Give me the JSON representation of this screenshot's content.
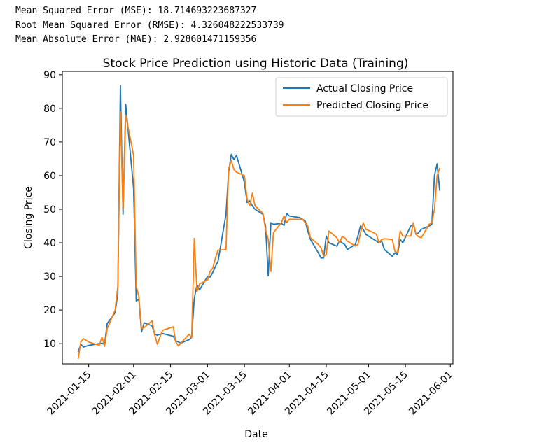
{
  "metrics": {
    "mse": "Mean Squared Error (MSE): 18.714693223687327",
    "rmse": "Root Mean Squared Error (RMSE): 4.326048222533739",
    "mae": "Mean Absolute Error (MAE): 2.928601471159356"
  },
  "chart_data": {
    "type": "line",
    "title": "Stock Price Prediction using Historic Data (Training)",
    "xlabel": "Date",
    "ylabel": "Closing Price",
    "xlim": [
      "2021-01-05",
      "2021-06-02"
    ],
    "ylim": [
      4,
      91
    ],
    "x_ticks": [
      "2021-01-15",
      "2021-02-01",
      "2021-02-15",
      "2021-03-01",
      "2021-03-15",
      "2021-04-01",
      "2021-04-15",
      "2021-05-01",
      "2021-05-15",
      "2021-06-01"
    ],
    "y_ticks": [
      10,
      20,
      30,
      40,
      50,
      60,
      70,
      80,
      90
    ],
    "grid": false,
    "legend_position": "upper right",
    "series": [
      {
        "name": "Actual Closing Price",
        "color": "#1f77b4",
        "points": [
          [
            "2021-01-11",
            7.5
          ],
          [
            "2021-01-12",
            9.8
          ],
          [
            "2021-01-13",
            9.0
          ],
          [
            "2021-01-15",
            9.5
          ],
          [
            "2021-01-19",
            10.0
          ],
          [
            "2021-01-20",
            10.1
          ],
          [
            "2021-01-21",
            9.8
          ],
          [
            "2021-01-22",
            16.0
          ],
          [
            "2021-01-25",
            19.2
          ],
          [
            "2021-01-26",
            25.0
          ],
          [
            "2021-01-27",
            86.8
          ],
          [
            "2021-01-28",
            48.5
          ],
          [
            "2021-01-29",
            81.2
          ],
          [
            "2021-02-01",
            56.2
          ],
          [
            "2021-02-02",
            22.7
          ],
          [
            "2021-02-03",
            23.2
          ],
          [
            "2021-02-04",
            13.5
          ],
          [
            "2021-02-05",
            16.2
          ],
          [
            "2021-02-08",
            15.3
          ],
          [
            "2021-02-09",
            12.8
          ],
          [
            "2021-02-10",
            12.5
          ],
          [
            "2021-02-11",
            12.8
          ],
          [
            "2021-02-12",
            13.0
          ],
          [
            "2021-02-16",
            12.2
          ],
          [
            "2021-02-17",
            10.8
          ],
          [
            "2021-02-18",
            10.5
          ],
          [
            "2021-02-19",
            10.2
          ],
          [
            "2021-02-22",
            11.2
          ],
          [
            "2021-02-23",
            11.8
          ],
          [
            "2021-02-24",
            23.5
          ],
          [
            "2021-02-25",
            27.5
          ],
          [
            "2021-02-26",
            26.0
          ],
          [
            "2021-03-01",
            30.0
          ],
          [
            "2021-03-02",
            29.8
          ],
          [
            "2021-03-03",
            31.2
          ],
          [
            "2021-03-04",
            33.0
          ],
          [
            "2021-03-05",
            34.5
          ],
          [
            "2021-03-08",
            48.5
          ],
          [
            "2021-03-09",
            61.0
          ],
          [
            "2021-03-10",
            66.3
          ],
          [
            "2021-03-11",
            64.8
          ],
          [
            "2021-03-12",
            66.0
          ],
          [
            "2021-03-15",
            58.0
          ],
          [
            "2021-03-16",
            52.0
          ],
          [
            "2021-03-17",
            52.5
          ],
          [
            "2021-03-18",
            51.0
          ],
          [
            "2021-03-19",
            50.0
          ],
          [
            "2021-03-22",
            48.5
          ],
          [
            "2021-03-23",
            45.0
          ],
          [
            "2021-03-24",
            30.2
          ],
          [
            "2021-03-25",
            46.0
          ],
          [
            "2021-03-26",
            45.5
          ],
          [
            "2021-03-29",
            45.8
          ],
          [
            "2021-03-30",
            45.2
          ],
          [
            "2021-03-31",
            48.8
          ],
          [
            "2021-04-01",
            48.0
          ],
          [
            "2021-04-05",
            47.5
          ],
          [
            "2021-04-06",
            47.0
          ],
          [
            "2021-04-07",
            46.5
          ],
          [
            "2021-04-08",
            43.5
          ],
          [
            "2021-04-09",
            41.0
          ],
          [
            "2021-04-12",
            37.0
          ],
          [
            "2021-04-13",
            35.5
          ],
          [
            "2021-04-14",
            35.5
          ],
          [
            "2021-04-15",
            42.0
          ],
          [
            "2021-04-16",
            40.0
          ],
          [
            "2021-04-19",
            39.0
          ],
          [
            "2021-04-20",
            40.5
          ],
          [
            "2021-04-21",
            40.0
          ],
          [
            "2021-04-22",
            39.5
          ],
          [
            "2021-04-23",
            38.0
          ],
          [
            "2021-04-26",
            39.5
          ],
          [
            "2021-04-27",
            42.0
          ],
          [
            "2021-04-28",
            45.0
          ],
          [
            "2021-04-29",
            44.0
          ],
          [
            "2021-04-30",
            42.5
          ],
          [
            "2021-05-03",
            41.0
          ],
          [
            "2021-05-04",
            40.5
          ],
          [
            "2021-05-05",
            40.0
          ],
          [
            "2021-05-06",
            40.5
          ],
          [
            "2021-05-07",
            38.0
          ],
          [
            "2021-05-10",
            36.0
          ],
          [
            "2021-05-11",
            37.0
          ],
          [
            "2021-05-12",
            36.5
          ],
          [
            "2021-05-13",
            41.0
          ],
          [
            "2021-05-14",
            40.0
          ],
          [
            "2021-05-17",
            45.0
          ],
          [
            "2021-05-18",
            45.5
          ],
          [
            "2021-05-19",
            42.5
          ],
          [
            "2021-05-20",
            43.0
          ],
          [
            "2021-05-21",
            44.0
          ],
          [
            "2021-05-24",
            45.0
          ],
          [
            "2021-05-25",
            45.5
          ],
          [
            "2021-05-26",
            60.0
          ],
          [
            "2021-05-27",
            63.5
          ],
          [
            "2021-05-28",
            55.5
          ]
        ]
      },
      {
        "name": "Predicted Closing Price",
        "color": "#ff7f0e",
        "points": [
          [
            "2021-01-11",
            5.5
          ],
          [
            "2021-01-12",
            10.5
          ],
          [
            "2021-01-13",
            11.5
          ],
          [
            "2021-01-15",
            10.5
          ],
          [
            "2021-01-19",
            9.5
          ],
          [
            "2021-01-20",
            12.0
          ],
          [
            "2021-01-21",
            9.2
          ],
          [
            "2021-01-22",
            14.5
          ],
          [
            "2021-01-25",
            20.0
          ],
          [
            "2021-01-26",
            27.0
          ],
          [
            "2021-01-27",
            79.0
          ],
          [
            "2021-01-28",
            50.0
          ],
          [
            "2021-01-29",
            78.0
          ],
          [
            "2021-02-01",
            66.0
          ],
          [
            "2021-02-02",
            27.0
          ],
          [
            "2021-02-03",
            24.0
          ],
          [
            "2021-02-04",
            14.5
          ],
          [
            "2021-02-05",
            14.8
          ],
          [
            "2021-02-08",
            16.8
          ],
          [
            "2021-02-09",
            12.5
          ],
          [
            "2021-02-10",
            9.8
          ],
          [
            "2021-02-11",
            12.0
          ],
          [
            "2021-02-12",
            14.0
          ],
          [
            "2021-02-16",
            15.0
          ],
          [
            "2021-02-17",
            10.5
          ],
          [
            "2021-02-18",
            9.3
          ],
          [
            "2021-02-19",
            10.3
          ],
          [
            "2021-02-22",
            12.8
          ],
          [
            "2021-02-23",
            11.8
          ],
          [
            "2021-02-24",
            41.3
          ],
          [
            "2021-02-25",
            25.5
          ],
          [
            "2021-02-26",
            27.8
          ],
          [
            "2021-03-01",
            29.0
          ],
          [
            "2021-03-02",
            31.5
          ],
          [
            "2021-03-03",
            32.5
          ],
          [
            "2021-03-04",
            35.5
          ],
          [
            "2021-03-05",
            37.8
          ],
          [
            "2021-03-08",
            38.0
          ],
          [
            "2021-03-09",
            62.0
          ],
          [
            "2021-03-10",
            64.5
          ],
          [
            "2021-03-11",
            61.8
          ],
          [
            "2021-03-12",
            61.0
          ],
          [
            "2021-03-15",
            60.0
          ],
          [
            "2021-03-16",
            53.0
          ],
          [
            "2021-03-17",
            51.0
          ],
          [
            "2021-03-18",
            54.8
          ],
          [
            "2021-03-19",
            51.0
          ],
          [
            "2021-03-22",
            48.8
          ],
          [
            "2021-03-23",
            44.0
          ],
          [
            "2021-03-24",
            41.0
          ],
          [
            "2021-03-25",
            31.5
          ],
          [
            "2021-03-26",
            43.0
          ],
          [
            "2021-03-29",
            46.0
          ],
          [
            "2021-03-30",
            48.0
          ],
          [
            "2021-03-31",
            46.0
          ],
          [
            "2021-04-01",
            47.0
          ],
          [
            "2021-04-05",
            47.0
          ],
          [
            "2021-04-06",
            47.0
          ],
          [
            "2021-04-07",
            46.0
          ],
          [
            "2021-04-08",
            45.0
          ],
          [
            "2021-04-09",
            41.5
          ],
          [
            "2021-04-12",
            39.5
          ],
          [
            "2021-04-13",
            38.5
          ],
          [
            "2021-04-14",
            36.0
          ],
          [
            "2021-04-15",
            36.5
          ],
          [
            "2021-04-16",
            43.5
          ],
          [
            "2021-04-19",
            41.5
          ],
          [
            "2021-04-20",
            40.0
          ],
          [
            "2021-04-21",
            41.8
          ],
          [
            "2021-04-22",
            41.5
          ],
          [
            "2021-04-23",
            40.5
          ],
          [
            "2021-04-26",
            39.0
          ],
          [
            "2021-04-27",
            39.5
          ],
          [
            "2021-04-28",
            43.0
          ],
          [
            "2021-04-29",
            46.0
          ],
          [
            "2021-04-30",
            44.0
          ],
          [
            "2021-05-03",
            43.0
          ],
          [
            "2021-05-04",
            42.5
          ],
          [
            "2021-05-05",
            40.0
          ],
          [
            "2021-05-06",
            41.0
          ],
          [
            "2021-05-07",
            41.2
          ],
          [
            "2021-05-10",
            41.0
          ],
          [
            "2021-05-11",
            37.5
          ],
          [
            "2021-05-12",
            37.0
          ],
          [
            "2021-05-13",
            43.5
          ],
          [
            "2021-05-14",
            42.0
          ],
          [
            "2021-05-17",
            42.0
          ],
          [
            "2021-05-18",
            46.0
          ],
          [
            "2021-05-19",
            42.5
          ],
          [
            "2021-05-20",
            41.8
          ],
          [
            "2021-05-21",
            41.5
          ],
          [
            "2021-05-24",
            45.5
          ],
          [
            "2021-05-25",
            46.0
          ],
          [
            "2021-05-26",
            50.0
          ],
          [
            "2021-05-27",
            60.0
          ],
          [
            "2021-05-28",
            62.3
          ]
        ]
      }
    ]
  }
}
